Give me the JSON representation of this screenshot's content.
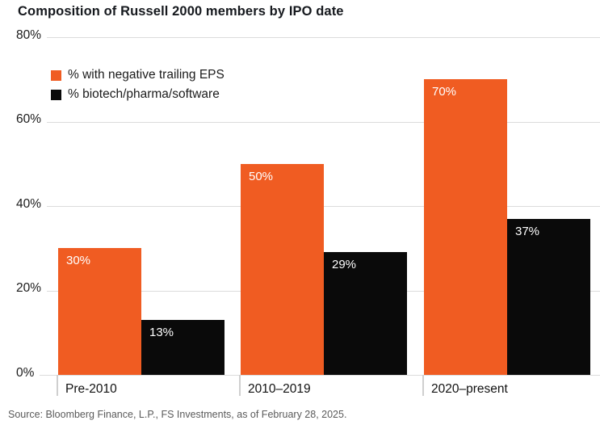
{
  "title": "Composition of Russell 2000 members by IPO date",
  "source": "Source: Bloomberg Finance, L.P., FS Investments, as of February 28, 2025.",
  "colors": {
    "series_orange": "#F05C22",
    "series_black": "#0a0a0a",
    "bar_label_text": "#ffffff",
    "gridline": "#dcdcdc",
    "title_text": "#16191e",
    "source_text": "#5a5a5a"
  },
  "legend": {
    "items": [
      {
        "label": "% with negative trailing EPS",
        "color": "#F05C22"
      },
      {
        "label": "% biotech/pharma/software",
        "color": "#0a0a0a"
      }
    ]
  },
  "chart_data": {
    "type": "bar",
    "title": "Composition of Russell 2000 members by IPO date",
    "categories": [
      "Pre-2010",
      "2010–2019",
      "2020–present"
    ],
    "series": [
      {
        "name": "% with negative trailing EPS",
        "color": "#F05C22",
        "values": [
          30,
          50,
          70
        ],
        "labels": [
          "30%",
          "50%",
          "70%"
        ]
      },
      {
        "name": "% biotech/pharma/software",
        "color": "#0a0a0a",
        "values": [
          13,
          29,
          37
        ],
        "labels": [
          "13%",
          "29%",
          "37%"
        ]
      }
    ],
    "xlabel": "",
    "ylabel": "",
    "ylim": [
      0,
      80
    ],
    "y_ticks": [
      {
        "value": 80,
        "label": "80%"
      },
      {
        "value": 60,
        "label": "60%"
      },
      {
        "value": 40,
        "label": "40%"
      },
      {
        "value": 20,
        "label": "20%"
      },
      {
        "value": 0,
        "label": "0%"
      }
    ],
    "grid": true,
    "legend_position": "top-left-inside"
  }
}
